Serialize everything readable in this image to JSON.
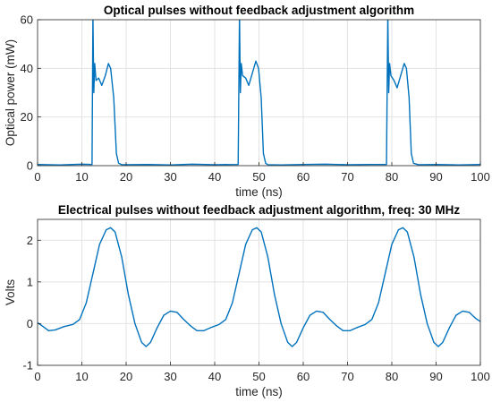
{
  "chart_data": [
    {
      "type": "line",
      "title": "Optical pulses without feedback adjustment algorithm",
      "xlabel": "time (ns)",
      "ylabel": "Optical power (mW)",
      "xlim": [
        0,
        100
      ],
      "ylim": [
        0,
        60
      ],
      "xticks": [
        0,
        10,
        20,
        30,
        40,
        50,
        60,
        70,
        80,
        90,
        100
      ],
      "yticks": [
        0,
        20,
        40,
        60
      ],
      "grid": true,
      "series_color": "#0072BD",
      "series": [
        {
          "name": "",
          "points": [
            [
              0,
              0.5
            ],
            [
              5,
              0.3
            ],
            [
              10,
              0.6
            ],
            [
              12.3,
              0.5
            ],
            [
              12.5,
              62
            ],
            [
              12.7,
              30
            ],
            [
              12.9,
              42
            ],
            [
              13.2,
              35
            ],
            [
              13.8,
              36
            ],
            [
              14.5,
              33
            ],
            [
              15.3,
              37
            ],
            [
              16.0,
              42
            ],
            [
              16.5,
              40
            ],
            [
              17.2,
              28
            ],
            [
              17.8,
              5
            ],
            [
              18.3,
              1
            ],
            [
              19,
              0.4
            ],
            [
              25,
              0.5
            ],
            [
              30,
              0.3
            ],
            [
              35,
              0.6
            ],
            [
              40,
              0.4
            ],
            [
              45.3,
              0.5
            ],
            [
              45.6,
              62
            ],
            [
              45.8,
              30
            ],
            [
              46.0,
              42
            ],
            [
              46.3,
              37
            ],
            [
              47.0,
              36
            ],
            [
              47.7,
              33
            ],
            [
              48.5,
              38
            ],
            [
              49.3,
              43
            ],
            [
              49.9,
              40
            ],
            [
              50.5,
              28
            ],
            [
              51.0,
              5
            ],
            [
              51.5,
              1
            ],
            [
              52,
              0.4
            ],
            [
              55,
              0.3
            ],
            [
              60,
              0.5
            ],
            [
              65,
              0.6
            ],
            [
              70,
              0.4
            ],
            [
              75,
              0.5
            ],
            [
              78.8,
              0.5
            ],
            [
              79.1,
              62
            ],
            [
              79.3,
              30
            ],
            [
              79.5,
              42
            ],
            [
              79.8,
              37
            ],
            [
              80.5,
              35
            ],
            [
              81.2,
              32
            ],
            [
              82.0,
              37
            ],
            [
              82.8,
              42
            ],
            [
              83.3,
              40
            ],
            [
              83.9,
              28
            ],
            [
              84.4,
              5
            ],
            [
              84.9,
              1
            ],
            [
              86,
              0.4
            ],
            [
              90,
              0.5
            ],
            [
              95,
              0.3
            ],
            [
              100,
              0.5
            ]
          ]
        }
      ]
    },
    {
      "type": "line",
      "title": "Electrical pulses without feedback adjustment algorithm, freq: 30 MHz",
      "xlabel": "time (ns)",
      "ylabel": "Volts",
      "xlim": [
        0,
        100
      ],
      "ylim": [
        -1,
        2.5
      ],
      "xticks": [
        0,
        10,
        20,
        30,
        40,
        50,
        60,
        70,
        80,
        90,
        100
      ],
      "yticks": [
        -1,
        0,
        1,
        2
      ],
      "grid": true,
      "series_color": "#0072BD",
      "series": [
        {
          "name": "",
          "points": [
            [
              0,
              0.02
            ],
            [
              1,
              -0.05
            ],
            [
              2.5,
              -0.17
            ],
            [
              4,
              -0.15
            ],
            [
              6,
              -0.07
            ],
            [
              8,
              -0.02
            ],
            [
              9.5,
              0.1
            ],
            [
              11,
              0.5
            ],
            [
              12.5,
              1.2
            ],
            [
              14,
              1.9
            ],
            [
              15.5,
              2.25
            ],
            [
              16.5,
              2.3
            ],
            [
              17.5,
              2.2
            ],
            [
              19,
              1.6
            ],
            [
              20.5,
              0.7
            ],
            [
              22,
              0.0
            ],
            [
              23.5,
              -0.45
            ],
            [
              24.5,
              -0.55
            ],
            [
              25.5,
              -0.45
            ],
            [
              27,
              -0.1
            ],
            [
              28.5,
              0.2
            ],
            [
              30,
              0.3
            ],
            [
              31.5,
              0.27
            ],
            [
              33,
              0.1
            ],
            [
              34.5,
              -0.05
            ],
            [
              36,
              -0.17
            ],
            [
              37.5,
              -0.17
            ],
            [
              39,
              -0.1
            ],
            [
              41,
              -0.02
            ],
            [
              42.5,
              0.1
            ],
            [
              44,
              0.5
            ],
            [
              45.5,
              1.2
            ],
            [
              47,
              1.9
            ],
            [
              48.5,
              2.25
            ],
            [
              49.5,
              2.3
            ],
            [
              50.5,
              2.2
            ],
            [
              52,
              1.6
            ],
            [
              53.5,
              0.7
            ],
            [
              55,
              0.0
            ],
            [
              56.5,
              -0.45
            ],
            [
              57.5,
              -0.55
            ],
            [
              58.5,
              -0.45
            ],
            [
              60,
              -0.1
            ],
            [
              61.5,
              0.2
            ],
            [
              63,
              0.3
            ],
            [
              64.5,
              0.27
            ],
            [
              66,
              0.1
            ],
            [
              67.5,
              -0.05
            ],
            [
              69,
              -0.17
            ],
            [
              70.5,
              -0.17
            ],
            [
              72,
              -0.1
            ],
            [
              74,
              -0.02
            ],
            [
              75.5,
              0.1
            ],
            [
              77,
              0.5
            ],
            [
              78.5,
              1.2
            ],
            [
              80,
              1.9
            ],
            [
              81.5,
              2.25
            ],
            [
              82.5,
              2.3
            ],
            [
              83.5,
              2.2
            ],
            [
              85,
              1.6
            ],
            [
              86.5,
              0.7
            ],
            [
              88,
              0.0
            ],
            [
              89.5,
              -0.45
            ],
            [
              90.5,
              -0.55
            ],
            [
              91.5,
              -0.45
            ],
            [
              93,
              -0.1
            ],
            [
              94.5,
              0.2
            ],
            [
              96,
              0.3
            ],
            [
              97.5,
              0.27
            ],
            [
              99,
              0.12
            ],
            [
              100,
              0.05
            ]
          ]
        }
      ]
    }
  ]
}
